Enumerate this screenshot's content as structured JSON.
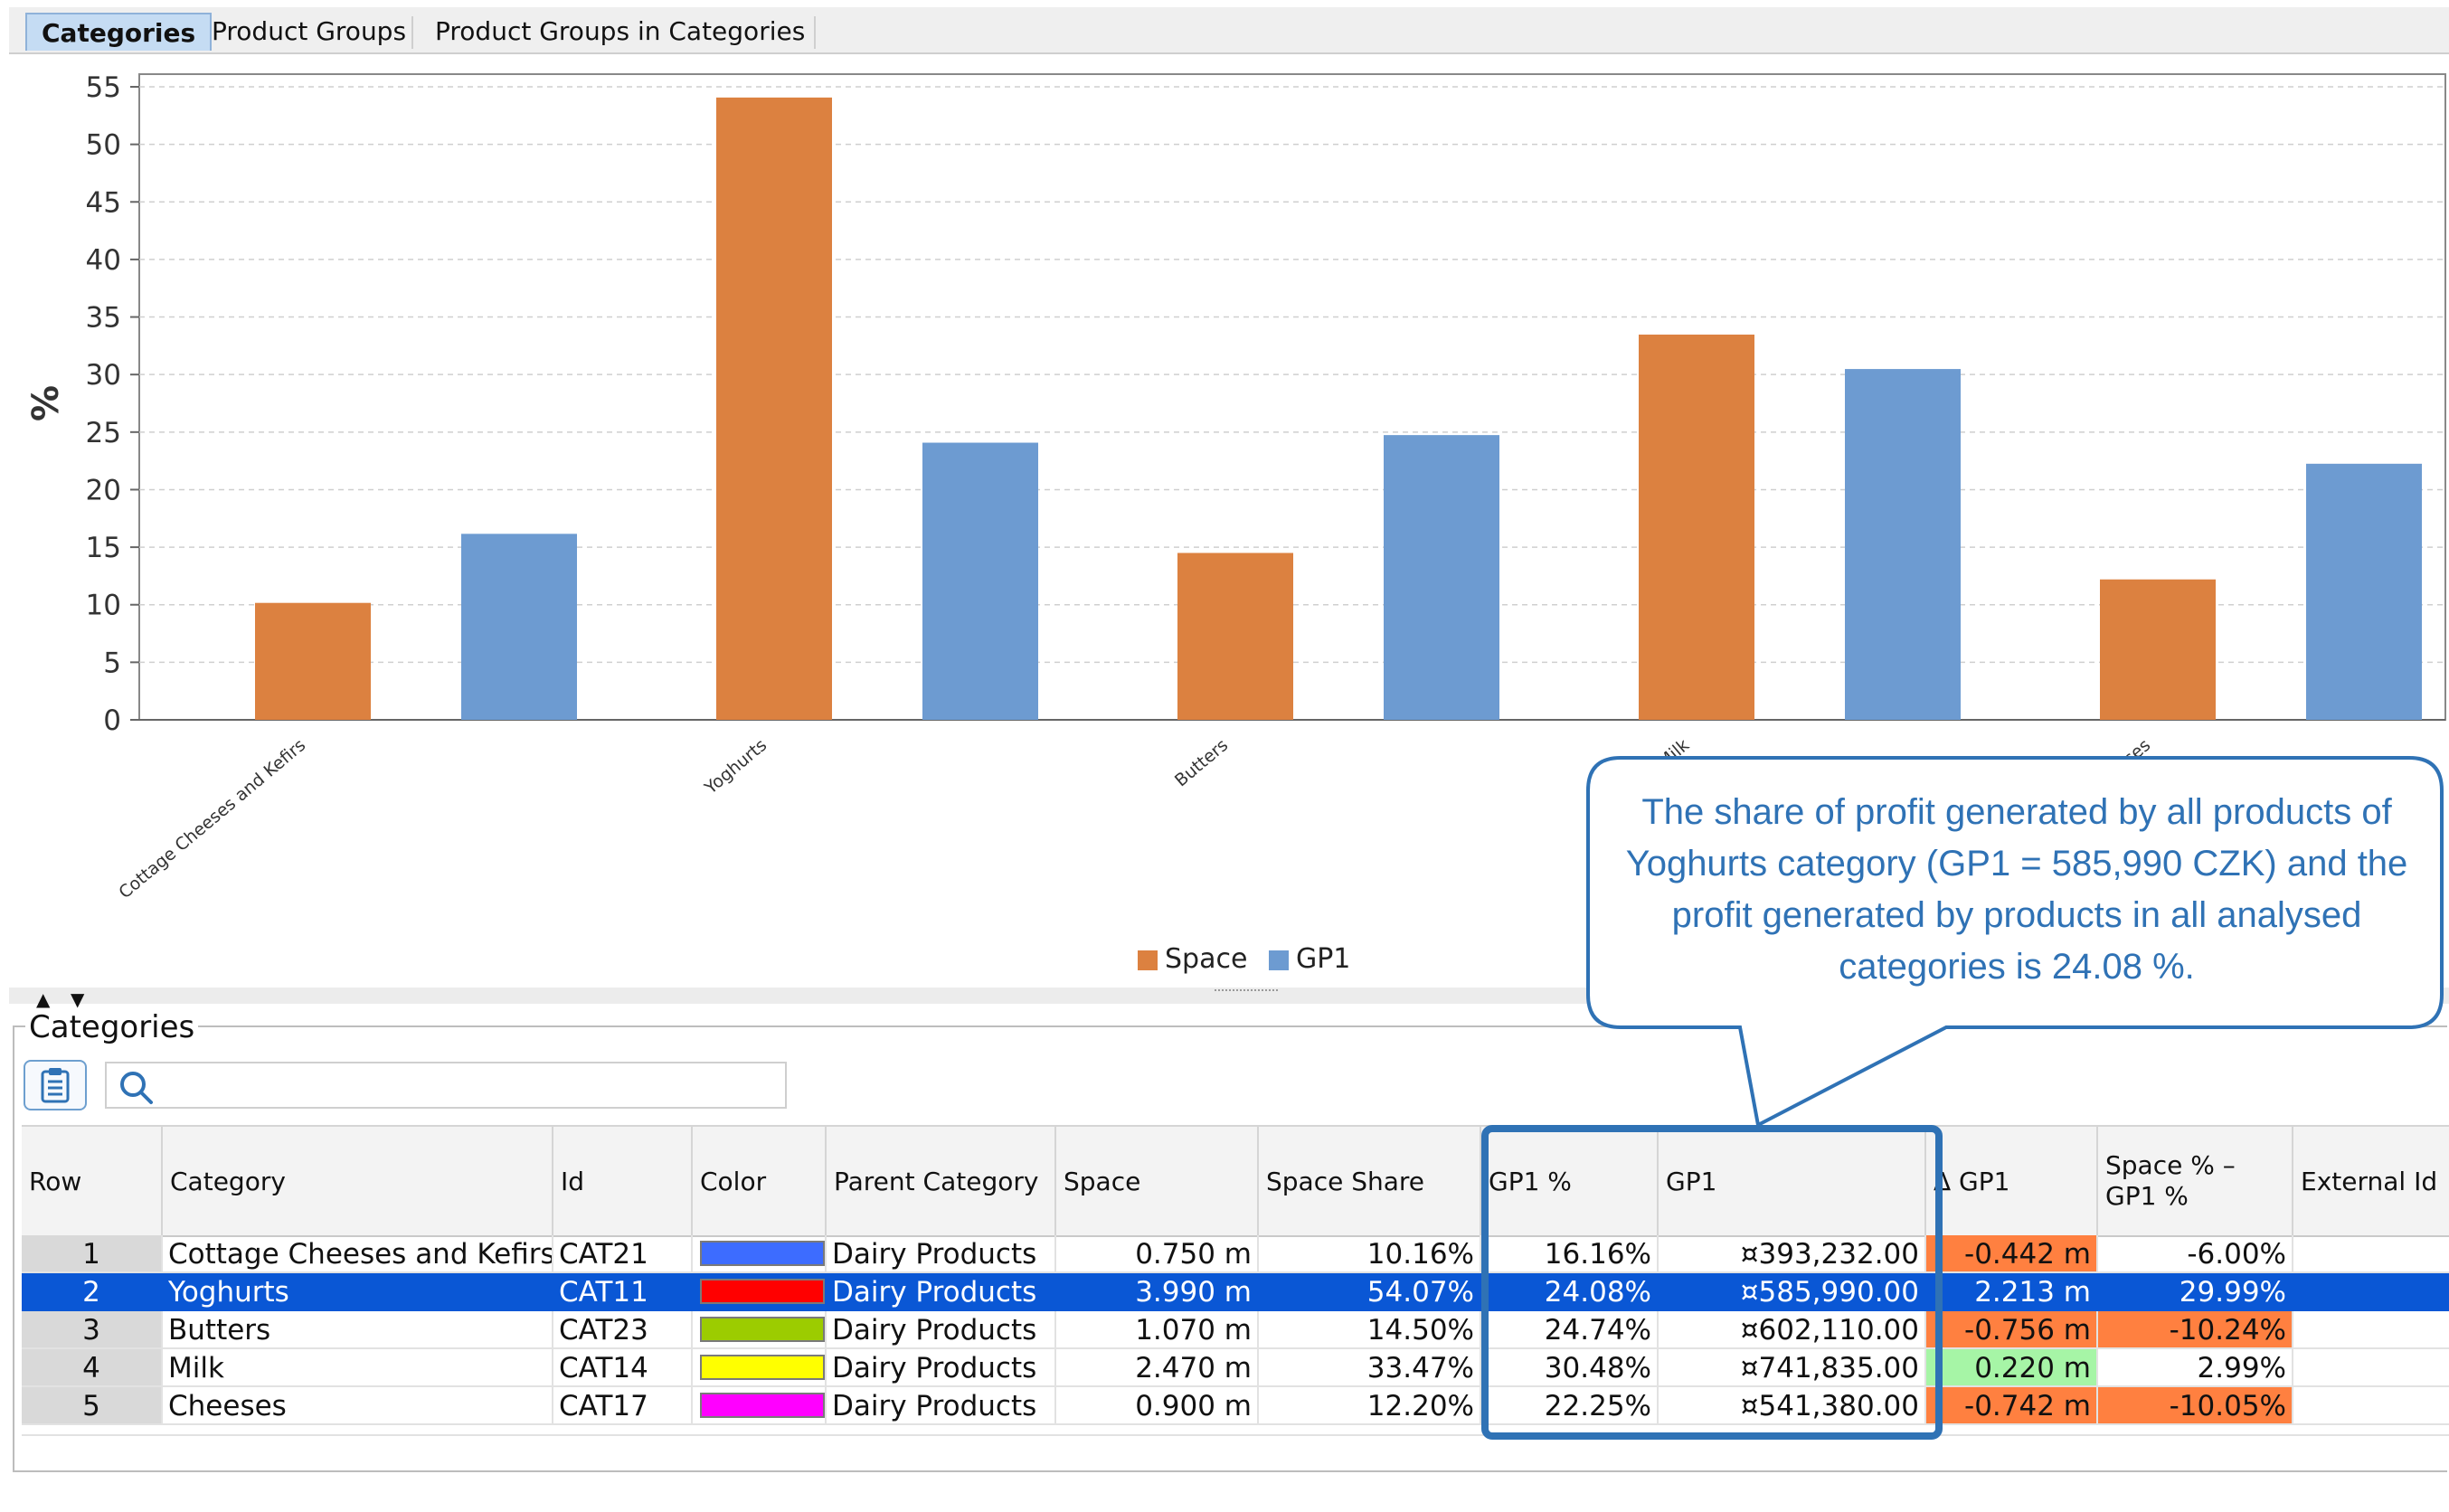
{
  "tabs": [
    {
      "label": "Categories",
      "active": true
    },
    {
      "label": "Product Groups",
      "active": false
    },
    {
      "label": "Product Groups in Categories",
      "active": false
    }
  ],
  "chart_data": {
    "type": "bar",
    "ylabel": "%",
    "xlabel": "",
    "ylim": [
      0,
      55
    ],
    "yticks": [
      0,
      5,
      10,
      15,
      20,
      25,
      30,
      35,
      40,
      45,
      50,
      55
    ],
    "grid": true,
    "legend_position": "bottom-center",
    "categories": [
      "Cottage Cheeses and Kefirs",
      "Yoghurts",
      "Butters",
      "Milk",
      "Cheeses"
    ],
    "series": [
      {
        "name": "Space",
        "color": "#dc8140",
        "values": [
          10.16,
          54.07,
          14.5,
          33.47,
          12.2
        ]
      },
      {
        "name": "GP1",
        "color": "#6d9bd1",
        "values": [
          16.16,
          24.08,
          24.74,
          30.48,
          22.25
        ]
      }
    ]
  },
  "panel": {
    "title": "Categories",
    "search_placeholder": "",
    "columns": [
      "Row",
      "Category",
      "Id",
      "Color",
      "Parent Category",
      "Space",
      "Space Share",
      "GP1 %",
      "GP1",
      "Δ GP1",
      "Space % – GP1 %",
      "External Id"
    ],
    "rows": [
      {
        "row": "1",
        "category": "Cottage Cheeses and Kefirs",
        "id": "CAT21",
        "color": "#3d6cff",
        "parent": "Dairy Products",
        "space": "0.750 m",
        "space_share": "10.16%",
        "gp1_pct": "16.16%",
        "gp1": "¤393,232.00",
        "delta_gp1": "-0.442 m",
        "delta_color": "#ff8040",
        "space_minus_gp1": "-6.00%",
        "space_minus_color": "",
        "external_id": ""
      },
      {
        "row": "2",
        "category": "Yoghurts",
        "id": "CAT11",
        "color": "#ff0000",
        "parent": "Dairy Products",
        "space": "3.990 m",
        "space_share": "54.07%",
        "gp1_pct": "24.08%",
        "gp1": "¤585,990.00",
        "delta_gp1": "2.213 m",
        "delta_color": "",
        "space_minus_gp1": "29.99%",
        "space_minus_color": "",
        "external_id": ""
      },
      {
        "row": "3",
        "category": "Butters",
        "id": "CAT23",
        "color": "#9ccc00",
        "parent": "Dairy Products",
        "space": "1.070 m",
        "space_share": "14.50%",
        "gp1_pct": "24.74%",
        "gp1": "¤602,110.00",
        "delta_gp1": "-0.756 m",
        "delta_color": "#ff8040",
        "space_minus_gp1": "-10.24%",
        "space_minus_color": "#ff8040",
        "external_id": ""
      },
      {
        "row": "4",
        "category": "Milk",
        "id": "CAT14",
        "color": "#ffff00",
        "parent": "Dairy Products",
        "space": "2.470 m",
        "space_share": "33.47%",
        "gp1_pct": "30.48%",
        "gp1": "¤741,835.00",
        "delta_gp1": "0.220 m",
        "delta_color": "#a6f5a6",
        "space_minus_gp1": "2.99%",
        "space_minus_color": "",
        "external_id": ""
      },
      {
        "row": "5",
        "category": "Cheeses",
        "id": "CAT17",
        "color": "#ff00ff",
        "parent": "Dairy Products",
        "space": "0.900 m",
        "space_share": "12.20%",
        "gp1_pct": "22.25%",
        "gp1": "¤541,380.00",
        "delta_gp1": "-0.742 m",
        "delta_color": "#ff8040",
        "space_minus_gp1": "-10.05%",
        "space_minus_color": "#ff8040",
        "external_id": ""
      }
    ],
    "selected_row": 2
  },
  "callout": {
    "text": "The share of profit generated by all products of Yoghurts category (GP1 = 585,990 CZK) and the profit generated by products in all analysed categories is 24.08 %.",
    "color": "#2f72b5"
  },
  "icons": [
    "expand-up-icon",
    "collapse-down-icon",
    "clipboard-list-icon",
    "search-icon"
  ]
}
